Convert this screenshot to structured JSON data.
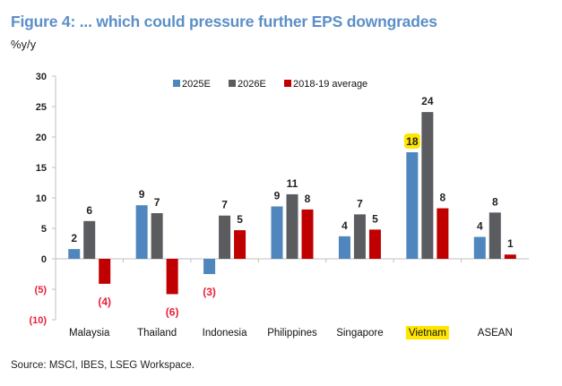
{
  "header": {
    "title": "Figure 4: ... which could pressure further EPS downgrades",
    "unit": "%y/y"
  },
  "footer": {
    "source": "Source: MSCI, IBES, LSEG Workspace."
  },
  "colors": {
    "2025E": "#4f86bd",
    "2026E": "#5b5c60",
    "2018-19 average": "#c00000",
    "title": "#5b8fc7",
    "negative_label": "#e8203a",
    "highlight": "#ffe600"
  },
  "chart_data": {
    "type": "bar",
    "title": "Figure 4: ... which could pressure further EPS downgrades",
    "ylabel": "%y/y",
    "xlabel": "",
    "ylim": [
      -10,
      30
    ],
    "yticks": [
      30,
      25,
      20,
      15,
      10,
      5,
      0,
      -5,
      -10
    ],
    "ytick_labels": [
      "30",
      "25",
      "20",
      "15",
      "10",
      "5",
      "0",
      "(5)",
      "(10)"
    ],
    "grid": false,
    "legend_position": "top-center",
    "categories": [
      "Malaysia",
      "Thailand",
      "Indonesia",
      "Philippines",
      "Singapore",
      "Vietnam",
      "ASEAN"
    ],
    "highlighted_category": "Vietnam",
    "series": [
      {
        "name": "2025E",
        "values": [
          1.6,
          8.8,
          -2.5,
          8.6,
          3.7,
          17.5,
          3.6
        ],
        "labels": [
          "2",
          "9",
          "(3)",
          "9",
          "4",
          "18",
          "4"
        ]
      },
      {
        "name": "2026E",
        "values": [
          6.2,
          7.5,
          7.1,
          10.6,
          7.3,
          24.1,
          7.6
        ],
        "labels": [
          "6",
          "7",
          "7",
          "11",
          "7",
          "24",
          "8"
        ]
      },
      {
        "name": "2018-19 average",
        "values": [
          -4.1,
          -5.8,
          4.7,
          8.1,
          4.8,
          8.3,
          0.7
        ],
        "labels": [
          "(4)",
          "(6)",
          "5",
          "8",
          "5",
          "8",
          "1"
        ]
      }
    ],
    "highlighted_labels": [
      {
        "category": "Vietnam",
        "series": "2025E"
      }
    ]
  }
}
